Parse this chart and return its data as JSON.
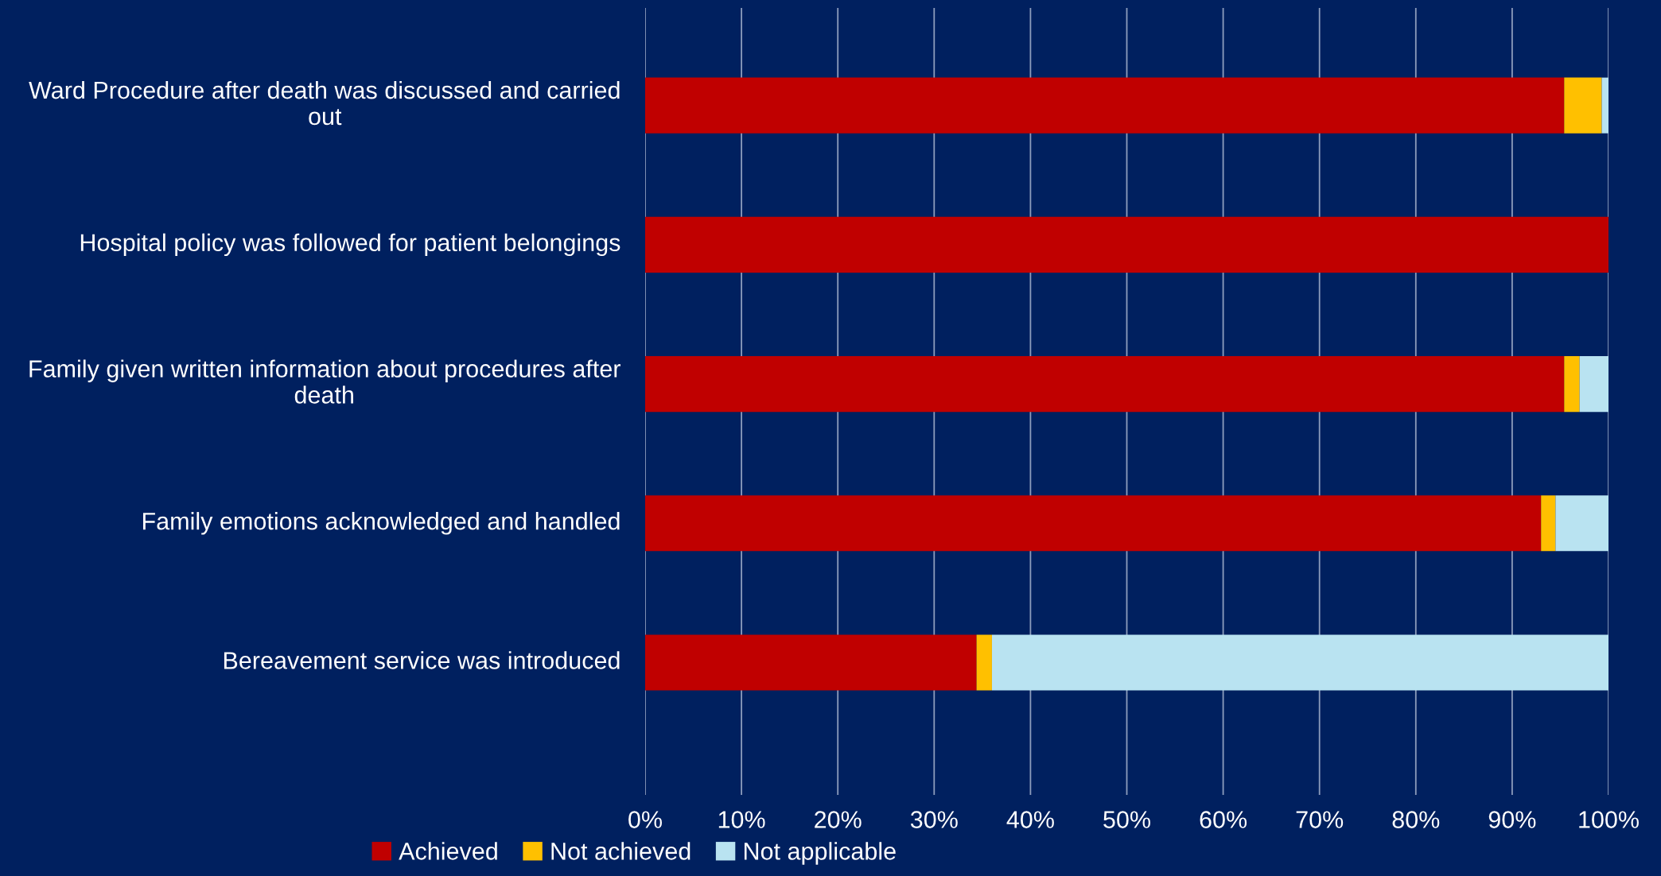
{
  "chart_data": {
    "type": "bar",
    "orientation": "horizontal",
    "stacked": true,
    "categories": [
      "Ward Procedure after death was discussed and carried out",
      "Hospital policy was followed for patient belongings",
      "Family given written information about procedures after death",
      "Family emotions acknowledged and handled",
      "Bereavement service was introduced"
    ],
    "series": [
      {
        "name": "Achieved",
        "color": "#c00000",
        "values": [
          95.4,
          100,
          95.4,
          93.0,
          34.4
        ]
      },
      {
        "name": "Not achieved",
        "color": "#ffc000",
        "values": [
          3.9,
          0,
          1.6,
          1.5,
          1.6
        ]
      },
      {
        "name": "Not applicable",
        "color": "#b9e3f1",
        "values": [
          0.7,
          0,
          3.0,
          5.5,
          64.0
        ]
      }
    ],
    "xlim": [
      0,
      100
    ],
    "xticks": [
      {
        "value": 0,
        "label": "0%"
      },
      {
        "value": 10,
        "label": "10%"
      },
      {
        "value": 20,
        "label": "20%"
      },
      {
        "value": 30,
        "label": "30%"
      },
      {
        "value": 40,
        "label": "40%"
      },
      {
        "value": 50,
        "label": "50%"
      },
      {
        "value": 60,
        "label": "60%"
      },
      {
        "value": 70,
        "label": "70%"
      },
      {
        "value": 80,
        "label": "80%"
      },
      {
        "value": 90,
        "label": "90%"
      },
      {
        "value": 100,
        "label": "100%"
      }
    ],
    "grid": "x",
    "legend": "bottom left"
  }
}
